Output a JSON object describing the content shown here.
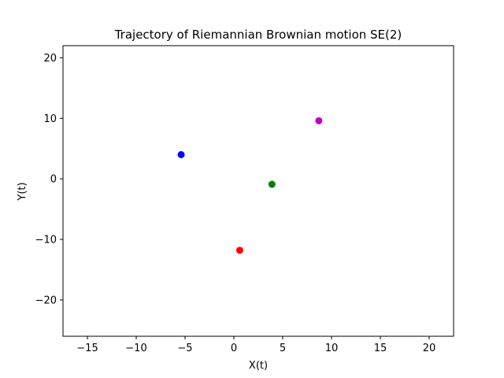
{
  "chart_data": {
    "type": "scatter",
    "title": "Trajectory of Riemannian Brownian motion SE(2)",
    "xlabel": "X(t)",
    "ylabel": "Y(t)",
    "xlim": [
      -17.5,
      22.5
    ],
    "ylim": [
      -26,
      22
    ],
    "xticks": [
      -15,
      -10,
      -5,
      0,
      5,
      10,
      15,
      20
    ],
    "yticks": [
      -20,
      -10,
      0,
      10,
      20
    ],
    "xtick_labels": [
      "−15",
      "−10",
      "−5",
      "0",
      "5",
      "10",
      "15",
      "20"
    ],
    "ytick_labels": [
      "−20",
      "−10",
      "0",
      "10",
      "20"
    ],
    "grid": false,
    "points": [
      {
        "x": -5.4,
        "y": 4.0,
        "color": "#0000ff"
      },
      {
        "x": 3.9,
        "y": -0.9,
        "color": "#008000"
      },
      {
        "x": 0.6,
        "y": -11.8,
        "color": "#ff0000"
      },
      {
        "x": 8.7,
        "y": 9.6,
        "color": "#bf00bf"
      }
    ]
  }
}
